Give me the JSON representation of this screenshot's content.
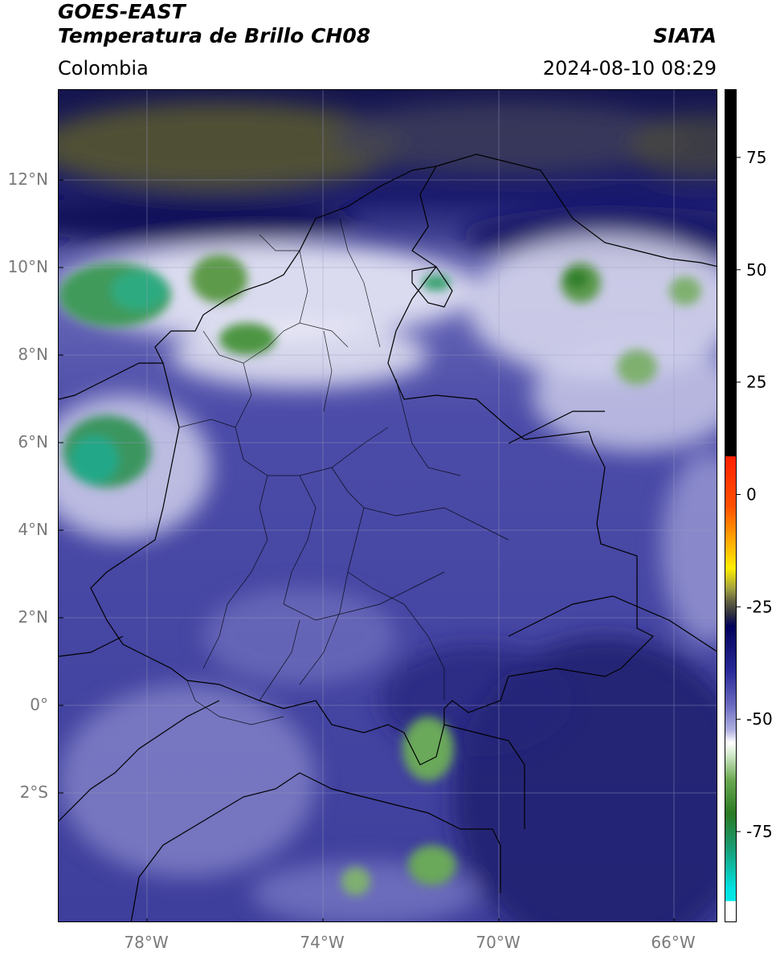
{
  "header": {
    "line1": "GOES-EAST",
    "line2": "Temperatura de Brillo CH08",
    "region": "Colombia",
    "organization": "SIATA",
    "datetime": "2024-08-10 08:29"
  },
  "map": {
    "lat_ticks": [
      "12°N",
      "10°N",
      "8°N",
      "6°N",
      "4°N",
      "2°N",
      "0°",
      "2°S"
    ],
    "lon_ticks": [
      "78°W",
      "74°W",
      "70°W",
      "66°W"
    ],
    "extent": {
      "lon_min": -80,
      "lon_max": -65,
      "lat_min": -5,
      "lat_max": 14
    }
  },
  "colorbar": {
    "ticks": [
      "75",
      "50",
      "25",
      "0",
      "-25",
      "-50",
      "-75"
    ],
    "tick_values": [
      75,
      50,
      25,
      0,
      -25,
      -50,
      -75
    ],
    "range": [
      -95,
      90
    ],
    "colors": {
      "black": "#000000",
      "red": "#ff2000",
      "orange": "#ff9a00",
      "yellow": "#ffff00",
      "olive": "#808020",
      "navy": "#00005a",
      "blue": "#3b3ba8",
      "lavender": "#b0b0e0",
      "white": "#ffffff",
      "green": "#3a8a2a",
      "teal": "#1aa080",
      "cyan": "#00e0e0"
    }
  }
}
